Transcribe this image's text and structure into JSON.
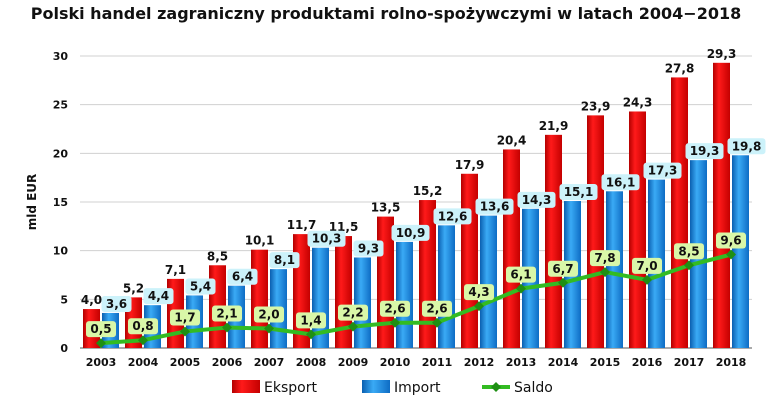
{
  "chart_data": {
    "type": "bar",
    "title": "Polski handel zagraniczny produktami rolno-spożywczymi w latach 2004−2018",
    "ylabel": "mld EUR",
    "xlabel": "",
    "ylim": [
      0,
      30
    ],
    "yticks": [
      0,
      5,
      10,
      15,
      20,
      25,
      30
    ],
    "grid": true,
    "legend_placement": "bottom",
    "categories": [
      "2003",
      "2004",
      "2005",
      "2006",
      "2007",
      "2008",
      "2009",
      "2010",
      "2011",
      "2012",
      "2013",
      "2014",
      "2015",
      "2016",
      "2017",
      "2018"
    ],
    "series": [
      {
        "name": "Eksport",
        "type": "bar",
        "color": "#e00000",
        "values": [
          4.0,
          5.2,
          7.1,
          8.5,
          10.1,
          11.7,
          11.5,
          13.5,
          15.2,
          17.9,
          20.4,
          21.9,
          23.9,
          24.3,
          27.8,
          29.3
        ],
        "labels": [
          "4,0",
          "5,2",
          "7,1",
          "8,5",
          "10,1",
          "11,7",
          "11,5",
          "13,5",
          "15,2",
          "17,9",
          "20,4",
          "21,9",
          "23,9",
          "24,3",
          "27,8",
          "29,3"
        ]
      },
      {
        "name": "Import",
        "type": "bar",
        "color": "#1e8fe0",
        "values": [
          3.6,
          4.4,
          5.4,
          6.4,
          8.1,
          10.3,
          9.3,
          10.9,
          12.6,
          13.6,
          14.3,
          15.1,
          16.1,
          17.3,
          19.3,
          19.8
        ],
        "labels": [
          "3,6",
          "4,4",
          "5,4",
          "6,4",
          "8,1",
          "10,3",
          "9,3",
          "10,9",
          "12,6",
          "13,6",
          "14,3",
          "15,1",
          "16,1",
          "17,3",
          "19,3",
          "19,8"
        ]
      },
      {
        "name": "Saldo",
        "type": "line",
        "color": "#33bb22",
        "values": [
          0.5,
          0.8,
          1.7,
          2.1,
          2.0,
          1.4,
          2.2,
          2.6,
          2.6,
          4.3,
          6.1,
          6.7,
          7.8,
          7.0,
          8.5,
          9.6
        ],
        "labels": [
          "0,5",
          "0,8",
          "1,7",
          "2,1",
          "2,0",
          "1,4",
          "2,2",
          "2,6",
          "2,6",
          "4,3",
          "6,1",
          "6,7",
          "7,8",
          "7,0",
          "8,5",
          "9,6"
        ]
      }
    ]
  },
  "colors": {
    "label_box_blue": "#ccf2fa",
    "label_box_green": "#d9f7a8",
    "grid": "#d0d0d0"
  }
}
